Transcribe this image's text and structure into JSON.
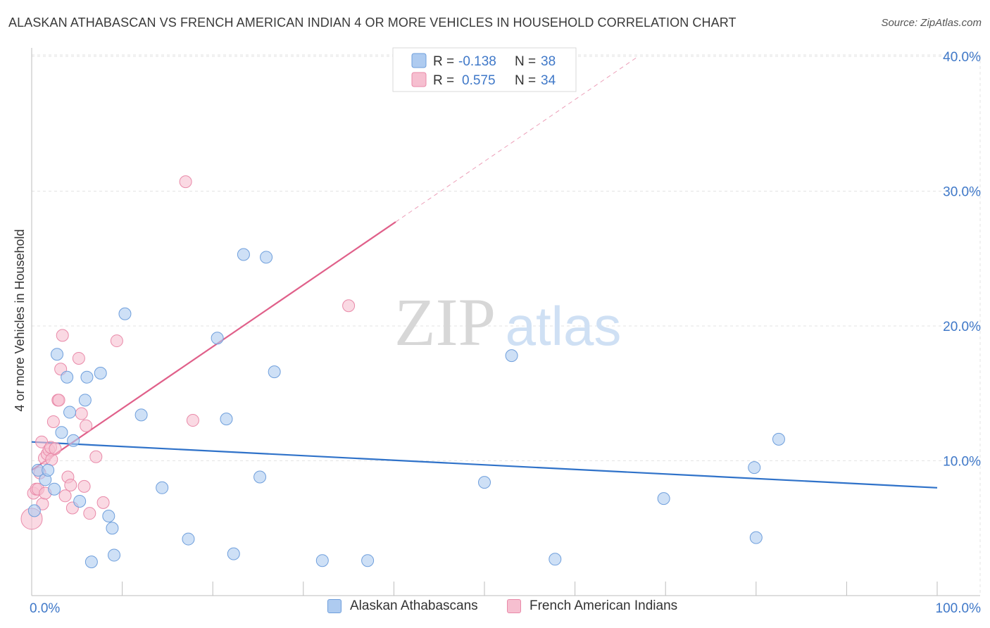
{
  "header": {
    "title": "ALASKAN ATHABASCAN VS FRENCH AMERICAN INDIAN 4 OR MORE VEHICLES IN HOUSEHOLD CORRELATION CHART",
    "source": "Source: ZipAtlas.com"
  },
  "watermark": {
    "part1": "ZIP",
    "part2": "atlas"
  },
  "legend": {
    "r_label": "R =",
    "n_label": "N =",
    "blue_r": "-0.138",
    "blue_n": "38",
    "pink_r": "0.575",
    "pink_n": "34"
  },
  "colors": {
    "blue_fill": "#aecbf0",
    "blue_stroke": "#6f9fdc",
    "blue_line": "#2f72c9",
    "pink_fill": "#f6bfd0",
    "pink_stroke": "#e98aa9",
    "pink_line": "#e0608a",
    "tick_label": "#3f78c8"
  },
  "chart_data": {
    "type": "scatter",
    "title": "ALASKAN ATHABASCAN VS FRENCH AMERICAN INDIAN 4 OR MORE VEHICLES IN HOUSEHOLD CORRELATION CHART",
    "xlabel": "",
    "ylabel": "4 or more Vehicles in Household",
    "xlim": [
      0,
      100
    ],
    "ylim": [
      0,
      41
    ],
    "x_tick_labels": [
      {
        "value": 0,
        "label": "0.0%"
      },
      {
        "value": 100,
        "label": "100.0%"
      }
    ],
    "y_tick_labels": [
      {
        "value": 10,
        "label": "10.0%"
      },
      {
        "value": 20,
        "label": "20.0%"
      },
      {
        "value": 30,
        "label": "30.0%"
      },
      {
        "value": 40,
        "label": "40.0%"
      }
    ],
    "series": [
      {
        "name": "Alaskan Athabascans",
        "color_key": "blue",
        "r": -0.138,
        "n": 38,
        "trend": {
          "x0": 0,
          "y0": 11.4,
          "x1": 100,
          "y1": 8.0,
          "solid_to": 100
        },
        "points": [
          [
            0.3,
            6.3
          ],
          [
            0.7,
            9.3
          ],
          [
            1.5,
            8.6
          ],
          [
            1.8,
            9.3
          ],
          [
            2.5,
            7.9
          ],
          [
            2.8,
            17.9
          ],
          [
            3.3,
            12.1
          ],
          [
            3.9,
            16.2
          ],
          [
            4.2,
            13.6
          ],
          [
            4.6,
            11.5
          ],
          [
            5.3,
            7.0
          ],
          [
            5.9,
            14.5
          ],
          [
            6.1,
            16.2
          ],
          [
            6.6,
            2.5
          ],
          [
            7.6,
            16.5
          ],
          [
            8.5,
            5.9
          ],
          [
            8.9,
            5.0
          ],
          [
            9.1,
            3.0
          ],
          [
            10.3,
            20.9
          ],
          [
            12.1,
            13.4
          ],
          [
            14.4,
            8.0
          ],
          [
            17.3,
            4.2
          ],
          [
            20.5,
            19.1
          ],
          [
            21.5,
            13.1
          ],
          [
            22.3,
            3.1
          ],
          [
            23.4,
            25.3
          ],
          [
            25.2,
            8.8
          ],
          [
            25.9,
            25.1
          ],
          [
            26.8,
            16.6
          ],
          [
            32.1,
            2.6
          ],
          [
            37.1,
            2.6
          ],
          [
            50.0,
            8.4
          ],
          [
            53.0,
            17.8
          ],
          [
            57.8,
            2.7
          ],
          [
            69.8,
            7.2
          ],
          [
            79.8,
            9.5
          ],
          [
            80.0,
            4.3
          ],
          [
            82.5,
            11.6
          ]
        ]
      },
      {
        "name": "French American Indians",
        "color_key": "pink",
        "r": 0.575,
        "n": 34,
        "trend": {
          "x0": 0,
          "y0": 9.3,
          "x1": 67,
          "y1": 40.0,
          "solid_to": 40.2
        },
        "points": [
          [
            0.0,
            5.7
          ],
          [
            0.2,
            7.6
          ],
          [
            0.5,
            7.9
          ],
          [
            0.7,
            7.9
          ],
          [
            0.9,
            9.1
          ],
          [
            1.1,
            11.4
          ],
          [
            1.2,
            6.8
          ],
          [
            1.4,
            10.2
          ],
          [
            1.5,
            7.6
          ],
          [
            1.7,
            10.5
          ],
          [
            1.9,
            10.8
          ],
          [
            2.1,
            11.0
          ],
          [
            2.2,
            10.1
          ],
          [
            2.4,
            12.9
          ],
          [
            2.6,
            10.9
          ],
          [
            2.9,
            14.5
          ],
          [
            3.0,
            14.5
          ],
          [
            3.2,
            16.8
          ],
          [
            3.4,
            19.3
          ],
          [
            3.7,
            7.4
          ],
          [
            4.0,
            8.8
          ],
          [
            4.3,
            8.2
          ],
          [
            4.5,
            6.5
          ],
          [
            5.2,
            17.6
          ],
          [
            5.5,
            13.5
          ],
          [
            5.8,
            8.1
          ],
          [
            6.0,
            12.6
          ],
          [
            6.4,
            6.1
          ],
          [
            7.1,
            10.3
          ],
          [
            7.9,
            6.9
          ],
          [
            9.4,
            18.9
          ],
          [
            17.0,
            30.7
          ],
          [
            17.8,
            13.0
          ],
          [
            35.0,
            21.5
          ]
        ]
      }
    ]
  }
}
